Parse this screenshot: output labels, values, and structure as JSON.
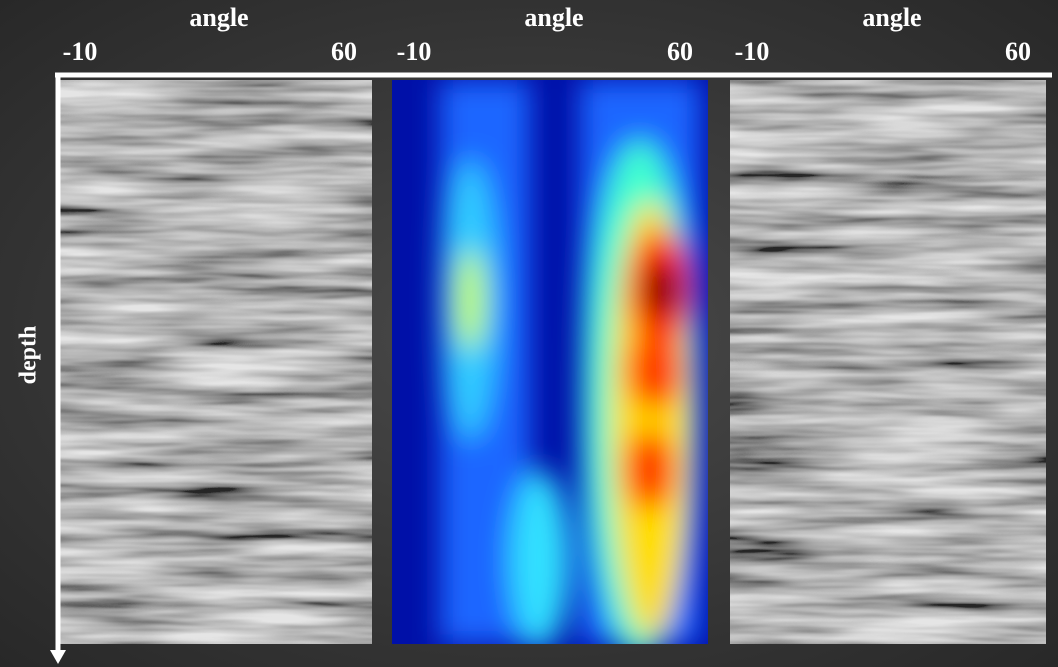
{
  "panels": [
    {
      "x_label": "angle",
      "xticks": [
        -10,
        60
      ]
    },
    {
      "x_label": "angle",
      "xticks": [
        -10,
        60
      ]
    },
    {
      "x_label": "angle",
      "xticks": [
        -10,
        60
      ]
    }
  ],
  "y_label": "depth"
}
